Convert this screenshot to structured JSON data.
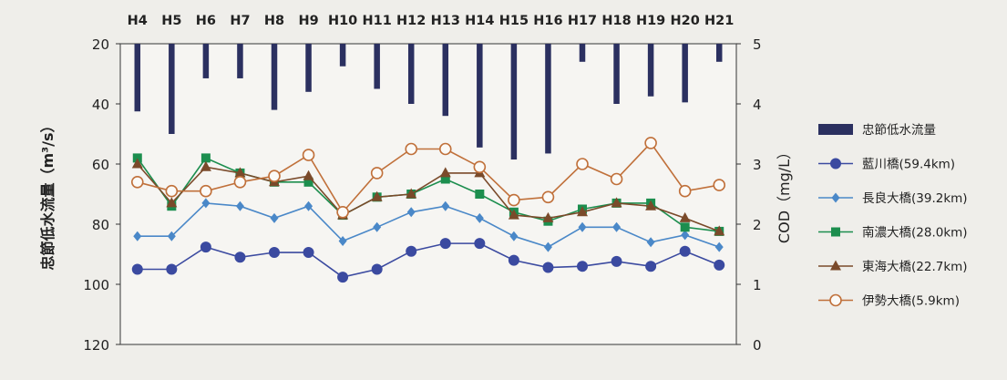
{
  "chart_data": {
    "type": "bar+line",
    "categories": [
      "H4",
      "H5",
      "H6",
      "H7",
      "H8",
      "H9",
      "H10",
      "H11",
      "H12",
      "H13",
      "H14",
      "H15",
      "H16",
      "H17",
      "H18",
      "H19",
      "H20",
      "H21"
    ],
    "ylabel_left": "忠節低水流量（m³/s）",
    "ylabel_right": "COD（mg/L）",
    "left_axis": {
      "min": 20,
      "max": 120,
      "inverted": true,
      "ticks": [
        20,
        40,
        60,
        80,
        100,
        120
      ]
    },
    "right_axis": {
      "min": 0,
      "max": 5,
      "ticks": [
        0,
        1,
        2,
        3,
        4,
        5
      ]
    },
    "bar_series": {
      "name": "忠節低水流量",
      "color": "#2b3060",
      "values": [
        42.5,
        50,
        31.5,
        31.5,
        42,
        36,
        27.5,
        35,
        40,
        44,
        54.5,
        58.5,
        56.5,
        26,
        40,
        37.5,
        39.5,
        26
      ]
    },
    "line_series": [
      {
        "name": "藍川橋(59.4km)",
        "color": "#3b4aa0",
        "marker": "circle-filled",
        "values": [
          1.25,
          1.25,
          1.62,
          1.45,
          1.53,
          1.53,
          1.12,
          1.25,
          1.55,
          1.68,
          1.68,
          1.4,
          1.28,
          1.3,
          1.38,
          1.3,
          1.55,
          1.32
        ]
      },
      {
        "name": "長良大橋(39.2km)",
        "color": "#4a88c8",
        "marker": "diamond",
        "values": [
          1.8,
          1.8,
          2.35,
          2.3,
          2.1,
          2.3,
          1.72,
          1.95,
          2.2,
          2.3,
          2.1,
          1.8,
          1.62,
          1.95,
          1.95,
          1.7,
          1.82,
          1.62
        ]
      },
      {
        "name": "南濃大橋(28.0km)",
        "color": "#1c8e4e",
        "marker": "square",
        "values": [
          3.1,
          2.3,
          3.1,
          2.85,
          2.7,
          2.7,
          2.15,
          2.45,
          2.5,
          2.75,
          2.5,
          2.2,
          2.05,
          2.25,
          2.35,
          2.35,
          1.95,
          1.88
        ]
      },
      {
        "name": "東海大橋(22.7km)",
        "color": "#7a4a2a",
        "marker": "triangle",
        "values": [
          3.0,
          2.35,
          2.95,
          2.85,
          2.7,
          2.8,
          2.15,
          2.45,
          2.5,
          2.85,
          2.85,
          2.15,
          2.1,
          2.2,
          2.35,
          2.3,
          2.1,
          1.88
        ]
      },
      {
        "name": "伊勢大橋(5.9km)",
        "color": "#c0703a",
        "marker": "circle-open",
        "values": [
          2.7,
          2.55,
          2.55,
          2.7,
          2.8,
          3.15,
          2.2,
          2.85,
          3.25,
          3.25,
          2.95,
          2.4,
          2.45,
          3.0,
          2.75,
          3.35,
          2.55,
          2.65
        ]
      }
    ],
    "legend_position": "right"
  }
}
